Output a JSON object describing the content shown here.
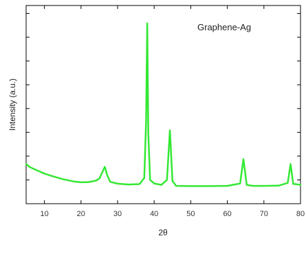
{
  "chart_data": {
    "type": "line",
    "title": "",
    "annotation": "Graphene-Ag",
    "xlabel": "2θ",
    "ylabel": "Intensity (a.u.)",
    "xlim": [
      5,
      80
    ],
    "ylim": [
      0,
      100
    ],
    "grid": false,
    "xticks": [
      10,
      20,
      30,
      40,
      50,
      60,
      70,
      80
    ],
    "xtick_labels": [
      "10",
      "20",
      "30",
      "40",
      "50",
      "60",
      "70",
      "80"
    ],
    "yticks_unlabeled": [
      12,
      24,
      36,
      48,
      60,
      72,
      84,
      96
    ],
    "series": [
      {
        "name": "",
        "color": "#33e833",
        "x": [
          5,
          6,
          8,
          10,
          12,
          15,
          18,
          20,
          22,
          24,
          25,
          25.8,
          26.5,
          27.2,
          28,
          30,
          33,
          36,
          37.3,
          37.8,
          38.1,
          38.4,
          38.9,
          40,
          42,
          43.5,
          44.3,
          45,
          46,
          50,
          55,
          60,
          63.5,
          64.4,
          65.3,
          67,
          70,
          74,
          76.5,
          77.3,
          78,
          79,
          80
        ],
        "y": [
          20,
          18.5,
          16.8,
          15.2,
          14.0,
          12.4,
          11.2,
          10.8,
          10.9,
          11.6,
          12.6,
          15.8,
          18.6,
          14.2,
          11.0,
          10.1,
          9.7,
          9.9,
          13.0,
          42.0,
          91.0,
          35.0,
          12.0,
          10.2,
          9.5,
          12.0,
          37.0,
          11.5,
          9.0,
          8.9,
          8.9,
          9.0,
          10.2,
          22.5,
          9.5,
          9.0,
          9.0,
          9.1,
          10.5,
          20.0,
          10.0,
          9.8,
          9.5
        ]
      }
    ]
  }
}
